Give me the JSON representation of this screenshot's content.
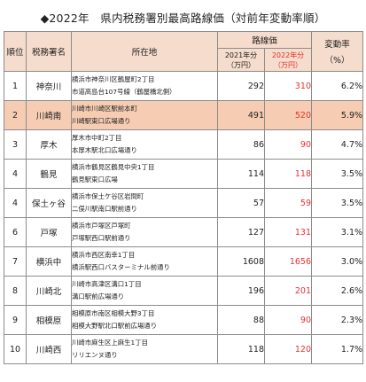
{
  "title": "◆2022年　県内税務署別最高路線価（対前年変動率順）",
  "headers": {
    "rank": "順位",
    "office": "税務署名",
    "location": "所在地",
    "price_group": "路線価",
    "y2021": "2021年分",
    "y2022": "2022年分",
    "unit": "（万円）",
    "rate_label": "変動率",
    "rate_unit": "（%）"
  },
  "colors": {
    "header_bg": "#f6dccc",
    "highlight_row_bg": "#f6cdb2",
    "accent_red": "#e53131"
  },
  "rows": [
    {
      "rank": "1",
      "office": "神奈川",
      "loc1": "横浜市神奈川区鶴屋町2丁目",
      "loc2": "市道高島台107号線（鶴屋橋北側）",
      "v2021": "292",
      "v2022": "310",
      "rate": "6.2%"
    },
    {
      "rank": "2",
      "office": "川崎南",
      "loc1": "川崎市川崎区駅前本町",
      "loc2": "川崎駅東口広場通り",
      "v2021": "491",
      "v2022": "520",
      "rate": "5.9%"
    },
    {
      "rank": "3",
      "office": "厚木",
      "loc1": "厚木市中町2丁目",
      "loc2": "本厚木駅北口広場通り",
      "v2021": "86",
      "v2022": "90",
      "rate": "4.7%"
    },
    {
      "rank": "4",
      "office": "鶴見",
      "loc1": "横浜市鶴見区鶴見中央1丁目",
      "loc2": "鶴見駅東口広場",
      "v2021": "114",
      "v2022": "118",
      "rate": "3.5%"
    },
    {
      "rank": "4",
      "office": "保土ヶ谷",
      "loc1": "横浜市保土ケ谷区岩間町",
      "loc2": "二俣川駅南口駅前通り",
      "v2021": "57",
      "v2022": "59",
      "rate": "3.5%"
    },
    {
      "rank": "6",
      "office": "戸塚",
      "loc1": "横浜市戸塚区戸塚町",
      "loc2": "戸塚駅西口駅前通り",
      "v2021": "127",
      "v2022": "131",
      "rate": "3.1%"
    },
    {
      "rank": "7",
      "office": "横浜中",
      "loc1": "横浜市西区南幸1丁目",
      "loc2": "横浜駅西口バスターミナル前通り",
      "v2021": "1608",
      "v2022": "1656",
      "rate": "3.0%"
    },
    {
      "rank": "8",
      "office": "川崎北",
      "loc1": "川崎市高津区溝口1丁目",
      "loc2": "溝口駅前広場通り",
      "v2021": "196",
      "v2022": "201",
      "rate": "2.6%"
    },
    {
      "rank": "9",
      "office": "相模原",
      "loc1": "相模原市南区相模大野3丁目",
      "loc2": "相模大野駅北口駅前広場通り",
      "v2021": "88",
      "v2022": "90",
      "rate": "2.3%"
    },
    {
      "rank": "10",
      "office": "川崎西",
      "loc1": "川崎市麻生区上麻生1丁目",
      "loc2": "リリエンヌ通り",
      "v2021": "118",
      "v2022": "120",
      "rate": "1.7%"
    }
  ]
}
